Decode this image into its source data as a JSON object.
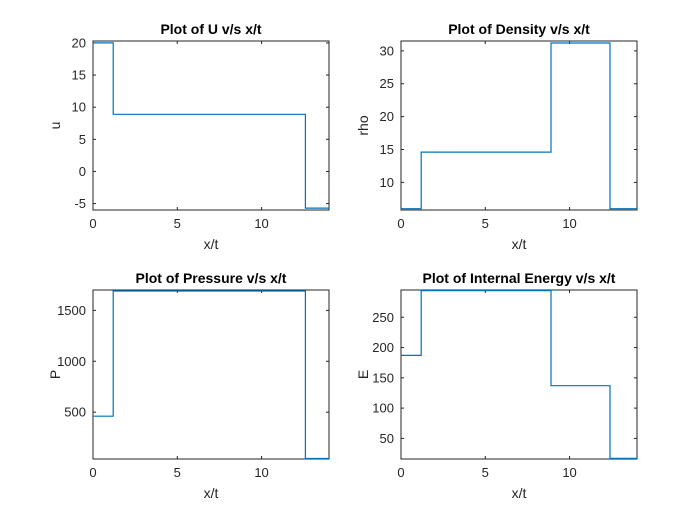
{
  "chart_data": [
    {
      "type": "line",
      "title": "Plot of U v/s x/t",
      "xlabel": "x/t",
      "ylabel": "u",
      "xlim": [
        0,
        14
      ],
      "ylim": [
        -6,
        20.3
      ],
      "xticks": [
        0,
        5,
        10
      ],
      "yticks": [
        -5,
        0,
        5,
        10,
        15,
        20
      ],
      "series": [
        {
          "x": [
            0,
            1.2,
            1.2,
            12.6,
            12.6,
            14
          ],
          "y": [
            20,
            20,
            8.9,
            8.9,
            -5.7,
            -5.7
          ]
        }
      ]
    },
    {
      "type": "line",
      "title": "Plot of Density v/s x/t",
      "xlabel": "x/t",
      "ylabel": "rho",
      "xlim": [
        0,
        14
      ],
      "ylim": [
        5.8,
        31.5
      ],
      "xticks": [
        0,
        5,
        10
      ],
      "yticks": [
        10,
        15,
        20,
        25,
        30
      ],
      "series": [
        {
          "x": [
            0,
            1.2,
            1.2,
            8.9,
            8.9,
            12.4,
            12.4,
            14
          ],
          "y": [
            6,
            6,
            14.6,
            14.6,
            31.2,
            31.2,
            6,
            6
          ]
        }
      ]
    },
    {
      "type": "line",
      "title": "Plot of Pressure v/s x/t",
      "xlabel": "x/t",
      "ylabel": "P",
      "xlim": [
        0,
        14
      ],
      "ylim": [
        40,
        1700
      ],
      "xticks": [
        0,
        5,
        10
      ],
      "yticks": [
        500,
        1000,
        1500
      ],
      "series": [
        {
          "x": [
            0,
            1.2,
            1.2,
            12.6,
            12.6,
            14
          ],
          "y": [
            460,
            460,
            1690,
            1690,
            45,
            45
          ]
        }
      ]
    },
    {
      "type": "line",
      "title": "Plot of Internal Energy v/s x/t",
      "xlabel": "x/t",
      "ylabel": "E",
      "xlim": [
        0,
        14
      ],
      "ylim": [
        16,
        295
      ],
      "xticks": [
        0,
        5,
        10
      ],
      "yticks": [
        50,
        100,
        150,
        200,
        250
      ],
      "series": [
        {
          "x": [
            0,
            1.2,
            1.2,
            8.9,
            8.9,
            12.4,
            12.4,
            14
          ],
          "y": [
            187,
            187,
            294,
            294,
            137,
            137,
            17,
            17
          ]
        }
      ]
    }
  ],
  "colors": {
    "line": "#0072BD",
    "axis": "#262626"
  }
}
